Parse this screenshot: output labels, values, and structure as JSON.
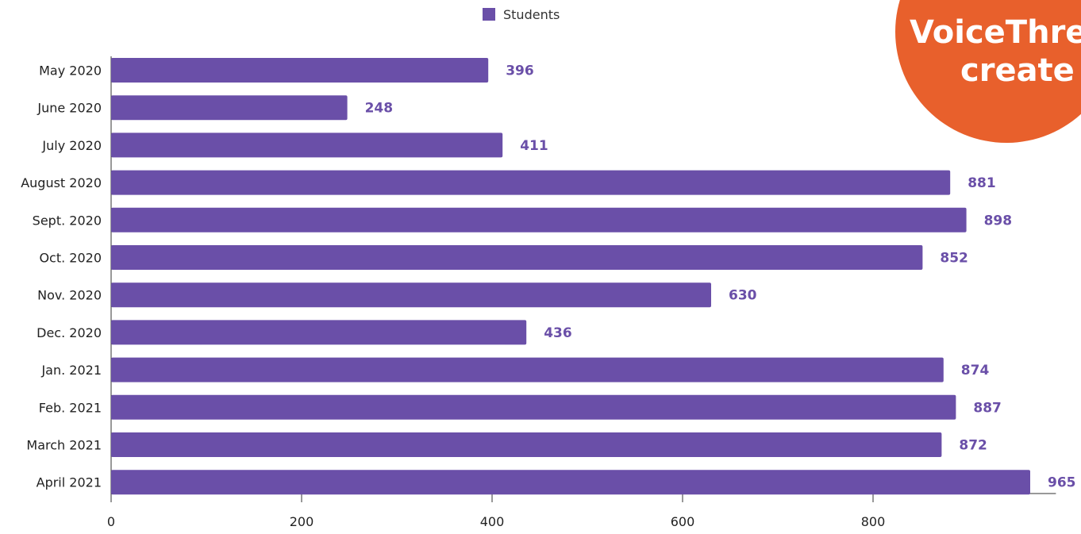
{
  "chart_data": {
    "type": "bar",
    "orientation": "horizontal",
    "categories": [
      "May 2020",
      "June 2020",
      "July 2020",
      "August 2020",
      "Sept. 2020",
      "Oct. 2020",
      "Nov. 2020",
      "Dec. 2020",
      "Jan. 2021",
      "Feb. 2021",
      "March 2021",
      "April 2021"
    ],
    "series": [
      {
        "name": "Students",
        "values": [
          396,
          248,
          411,
          881,
          898,
          852,
          630,
          436,
          874,
          887,
          872,
          965
        ],
        "color": "#6a4fa8"
      }
    ],
    "xticks": [
      0,
      200,
      400,
      600,
      800
    ],
    "xlim": [
      0,
      992
    ],
    "grid": false,
    "legend": "top-center",
    "data_labels": true
  },
  "legend": {
    "label": "Students",
    "color": "#6a4fa8"
  },
  "logo": {
    "line1": "VoiceThre",
    "line2": "create",
    "color": "#e8602c"
  }
}
